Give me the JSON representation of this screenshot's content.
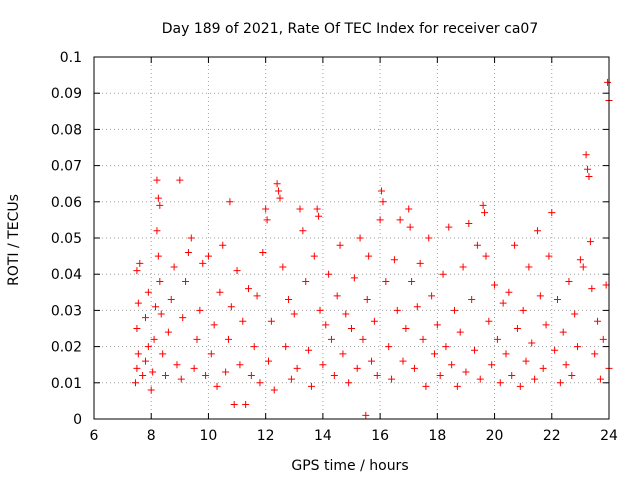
{
  "chart_data": {
    "type": "scatter",
    "title": "Day 189 of 2021, Rate Of TEC Index for receiver ca07",
    "xlabel": "GPS time / hours",
    "ylabel": "ROTI / TECUs",
    "xlim": [
      6,
      24
    ],
    "ylim": [
      0,
      0.1
    ],
    "x_ticks": [
      "6",
      "8",
      "10",
      "12",
      "14",
      "16",
      "18",
      "20",
      "22",
      "24"
    ],
    "y_ticks": [
      "0",
      "0.01",
      "0.02",
      "0.03",
      "0.04",
      "0.05",
      "0.06",
      "0.07",
      "0.08",
      "0.09",
      "0.1"
    ],
    "grid": true,
    "marker": "+",
    "series_color": "#ff0000",
    "points": [
      [
        7.45,
        0.01
      ],
      [
        7.5,
        0.014
      ],
      [
        7.55,
        0.018
      ],
      [
        7.5,
        0.025
      ],
      [
        7.55,
        0.032
      ],
      [
        7.5,
        0.041
      ],
      [
        7.6,
        0.043
      ],
      [
        7.7,
        0.012
      ],
      [
        7.8,
        0.016
      ],
      [
        7.9,
        0.02
      ],
      [
        7.8,
        0.028
      ],
      [
        7.9,
        0.035
      ],
      [
        8.0,
        0.008
      ],
      [
        8.05,
        0.013
      ],
      [
        8.1,
        0.022
      ],
      [
        8.15,
        0.031
      ],
      [
        8.2,
        0.066
      ],
      [
        8.25,
        0.061
      ],
      [
        8.3,
        0.059
      ],
      [
        8.2,
        0.052
      ],
      [
        8.25,
        0.045
      ],
      [
        8.3,
        0.038
      ],
      [
        8.35,
        0.029
      ],
      [
        8.4,
        0.018
      ],
      [
        8.5,
        0.012
      ],
      [
        8.6,
        0.024
      ],
      [
        8.7,
        0.033
      ],
      [
        8.8,
        0.042
      ],
      [
        8.9,
        0.015
      ],
      [
        9.0,
        0.066
      ],
      [
        9.05,
        0.011
      ],
      [
        9.1,
        0.028
      ],
      [
        9.2,
        0.038
      ],
      [
        9.3,
        0.046
      ],
      [
        9.4,
        0.05
      ],
      [
        9.5,
        0.014
      ],
      [
        9.6,
        0.022
      ],
      [
        9.7,
        0.03
      ],
      [
        9.8,
        0.043
      ],
      [
        9.9,
        0.012
      ],
      [
        10.0,
        0.045
      ],
      [
        10.1,
        0.018
      ],
      [
        10.2,
        0.026
      ],
      [
        10.3,
        0.009
      ],
      [
        10.4,
        0.035
      ],
      [
        10.5,
        0.048
      ],
      [
        10.6,
        0.013
      ],
      [
        10.7,
        0.022
      ],
      [
        10.75,
        0.06
      ],
      [
        10.8,
        0.031
      ],
      [
        10.9,
        0.004
      ],
      [
        11.0,
        0.041
      ],
      [
        11.1,
        0.015
      ],
      [
        11.2,
        0.027
      ],
      [
        11.3,
        0.004
      ],
      [
        11.4,
        0.036
      ],
      [
        11.5,
        0.012
      ],
      [
        11.6,
        0.02
      ],
      [
        11.7,
        0.034
      ],
      [
        11.8,
        0.01
      ],
      [
        11.9,
        0.046
      ],
      [
        12.0,
        0.058
      ],
      [
        12.05,
        0.055
      ],
      [
        12.1,
        0.016
      ],
      [
        12.2,
        0.027
      ],
      [
        12.3,
        0.008
      ],
      [
        12.4,
        0.065
      ],
      [
        12.45,
        0.063
      ],
      [
        12.5,
        0.061
      ],
      [
        12.6,
        0.042
      ],
      [
        12.7,
        0.02
      ],
      [
        12.8,
        0.033
      ],
      [
        12.9,
        0.011
      ],
      [
        13.0,
        0.029
      ],
      [
        13.1,
        0.014
      ],
      [
        13.2,
        0.058
      ],
      [
        13.3,
        0.052
      ],
      [
        13.4,
        0.038
      ],
      [
        13.5,
        0.019
      ],
      [
        13.6,
        0.009
      ],
      [
        13.7,
        0.045
      ],
      [
        13.8,
        0.058
      ],
      [
        13.85,
        0.056
      ],
      [
        13.9,
        0.03
      ],
      [
        14.0,
        0.015
      ],
      [
        14.1,
        0.026
      ],
      [
        14.2,
        0.04
      ],
      [
        14.3,
        0.022
      ],
      [
        14.4,
        0.012
      ],
      [
        14.5,
        0.034
      ],
      [
        14.6,
        0.048
      ],
      [
        14.7,
        0.018
      ],
      [
        14.8,
        0.029
      ],
      [
        14.9,
        0.01
      ],
      [
        15.0,
        0.025
      ],
      [
        15.1,
        0.039
      ],
      [
        15.2,
        0.014
      ],
      [
        15.3,
        0.05
      ],
      [
        15.4,
        0.022
      ],
      [
        15.5,
        0.001
      ],
      [
        15.55,
        0.033
      ],
      [
        15.6,
        0.045
      ],
      [
        15.7,
        0.016
      ],
      [
        15.8,
        0.027
      ],
      [
        15.9,
        0.012
      ],
      [
        16.0,
        0.055
      ],
      [
        16.05,
        0.063
      ],
      [
        16.1,
        0.06
      ],
      [
        16.2,
        0.038
      ],
      [
        16.3,
        0.02
      ],
      [
        16.4,
        0.011
      ],
      [
        16.5,
        0.044
      ],
      [
        16.6,
        0.03
      ],
      [
        16.7,
        0.055
      ],
      [
        16.8,
        0.016
      ],
      [
        16.9,
        0.025
      ],
      [
        17.0,
        0.058
      ],
      [
        17.05,
        0.053
      ],
      [
        17.1,
        0.038
      ],
      [
        17.2,
        0.014
      ],
      [
        17.3,
        0.031
      ],
      [
        17.4,
        0.043
      ],
      [
        17.5,
        0.022
      ],
      [
        17.6,
        0.009
      ],
      [
        17.7,
        0.05
      ],
      [
        17.8,
        0.034
      ],
      [
        17.9,
        0.018
      ],
      [
        18.0,
        0.026
      ],
      [
        18.1,
        0.012
      ],
      [
        18.2,
        0.04
      ],
      [
        18.3,
        0.02
      ],
      [
        18.4,
        0.053
      ],
      [
        18.5,
        0.015
      ],
      [
        18.6,
        0.03
      ],
      [
        18.7,
        0.009
      ],
      [
        18.8,
        0.024
      ],
      [
        18.9,
        0.042
      ],
      [
        19.0,
        0.013
      ],
      [
        19.1,
        0.054
      ],
      [
        19.2,
        0.033
      ],
      [
        19.3,
        0.019
      ],
      [
        19.4,
        0.048
      ],
      [
        19.5,
        0.011
      ],
      [
        19.6,
        0.059
      ],
      [
        19.65,
        0.057
      ],
      [
        19.7,
        0.045
      ],
      [
        19.8,
        0.027
      ],
      [
        19.9,
        0.015
      ],
      [
        20.0,
        0.037
      ],
      [
        20.1,
        0.022
      ],
      [
        20.2,
        0.01
      ],
      [
        20.3,
        0.032
      ],
      [
        20.4,
        0.018
      ],
      [
        20.5,
        0.035
      ],
      [
        20.6,
        0.012
      ],
      [
        20.7,
        0.048
      ],
      [
        20.8,
        0.025
      ],
      [
        20.9,
        0.009
      ],
      [
        21.0,
        0.03
      ],
      [
        21.1,
        0.016
      ],
      [
        21.2,
        0.042
      ],
      [
        21.3,
        0.021
      ],
      [
        21.4,
        0.011
      ],
      [
        21.5,
        0.052
      ],
      [
        21.6,
        0.034
      ],
      [
        21.7,
        0.014
      ],
      [
        21.8,
        0.026
      ],
      [
        21.9,
        0.045
      ],
      [
        22.0,
        0.057
      ],
      [
        22.1,
        0.019
      ],
      [
        22.2,
        0.033
      ],
      [
        22.3,
        0.01
      ],
      [
        22.4,
        0.024
      ],
      [
        22.5,
        0.015
      ],
      [
        22.6,
        0.038
      ],
      [
        22.7,
        0.012
      ],
      [
        22.8,
        0.029
      ],
      [
        22.9,
        0.02
      ],
      [
        23.0,
        0.044
      ],
      [
        23.1,
        0.042
      ],
      [
        23.2,
        0.073
      ],
      [
        23.25,
        0.069
      ],
      [
        23.3,
        0.067
      ],
      [
        23.35,
        0.049
      ],
      [
        23.4,
        0.036
      ],
      [
        23.5,
        0.018
      ],
      [
        23.6,
        0.027
      ],
      [
        23.7,
        0.011
      ],
      [
        23.8,
        0.022
      ],
      [
        23.9,
        0.037
      ],
      [
        23.95,
        0.093
      ],
      [
        24.0,
        0.088
      ],
      [
        24.0,
        0.014
      ]
    ]
  }
}
